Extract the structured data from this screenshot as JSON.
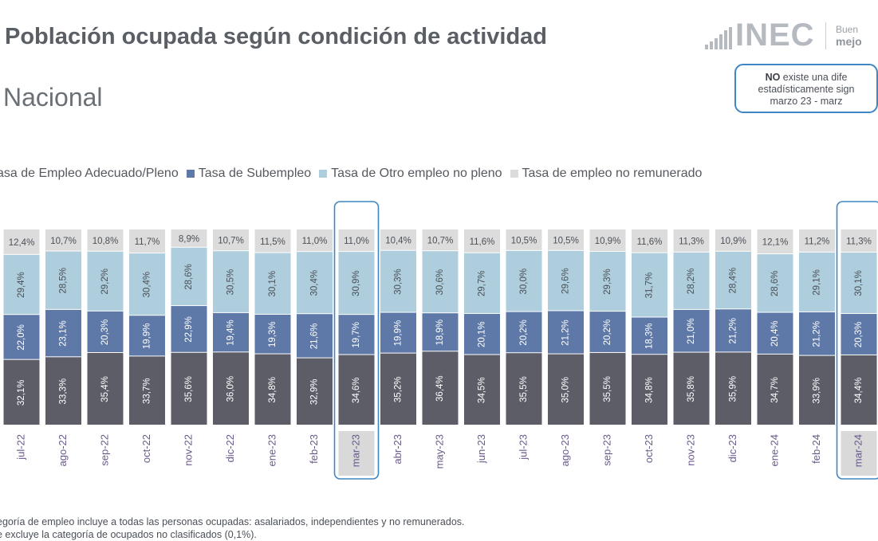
{
  "header": {
    "title": "Población ocupada según condición de actividad",
    "subtitle": "Nacional"
  },
  "logo": {
    "text": "INEC",
    "tagline_1": "Buen",
    "tagline_2": "mejo"
  },
  "note": {
    "bold": "NO",
    "line_1_rest": " existe una dife",
    "line_2": "estadísticamente sign",
    "line_3": "marzo 23 - marz"
  },
  "footnote": {
    "line_1": "egoría de empleo incluye a todas las personas ocupadas: asalariados, independientes y no remunerados.",
    "line_2": "e excluye la categoría de ocupados no clasificados (0,1%)."
  },
  "colors": {
    "adecuado": "#5d5d68",
    "subempleo": "#5e79a8",
    "otro": "#aecddd",
    "no_remunerado": "#dcdcdc",
    "highlight": "#3f86c5",
    "axis_label": "#6a5a8c"
  },
  "chart_data": {
    "type": "bar",
    "stacked": true,
    "percent": true,
    "legend_position": "top-left",
    "categories": [
      "jul-22",
      "ago-22",
      "sep-22",
      "oct-22",
      "nov-22",
      "dic-22",
      "ene-23",
      "feb-23",
      "mar-23",
      "abr-23",
      "may-23",
      "jun-23",
      "jul-23",
      "ago-23",
      "sep-23",
      "oct-23",
      "nov-23",
      "dic-23",
      "ene-24",
      "feb-24",
      "mar-24"
    ],
    "highlighted": [
      "mar-23",
      "mar-24"
    ],
    "series": [
      {
        "name": "asa de Empleo Adecuado/Pleno",
        "key": "adecuado",
        "values": [
          32.1,
          33.3,
          35.4,
          33.7,
          35.6,
          36.0,
          34.8,
          32.9,
          34.6,
          35.2,
          36.4,
          34.5,
          35.5,
          35.0,
          35.5,
          34.8,
          35.8,
          35.9,
          34.7,
          33.9,
          34.4
        ],
        "labels": [
          "32,1%",
          "33,3%",
          "35,4%",
          "33,7%",
          "35,6%",
          "36,0%",
          "34,8%",
          "32,9%",
          "34,6%",
          "35,2%",
          "36,4%",
          "34,5%",
          "35,5%",
          "35,0%",
          "35,5%",
          "34,8%",
          "35,8%",
          "35,9%",
          "34,7%",
          "33,9%",
          "34,4%"
        ]
      },
      {
        "name": "Tasa de Subempleo",
        "key": "subempleo",
        "values": [
          22.0,
          23.1,
          20.3,
          19.9,
          22.9,
          19.4,
          19.3,
          21.6,
          19.7,
          19.9,
          18.9,
          20.1,
          20.2,
          21.2,
          20.2,
          18.3,
          21.0,
          21.2,
          20.4,
          21.2,
          20.3
        ],
        "labels": [
          "22,0%",
          "23,1%",
          "20,3%",
          "19,9%",
          "22,9%",
          "19,4%",
          "19,3%",
          "21,6%",
          "19,7%",
          "19,9%",
          "18,9%",
          "20,1%",
          "20,2%",
          "21,2%",
          "20,2%",
          "18,3%",
          "21,0%",
          "21,2%",
          "20,4%",
          "21,2%",
          "20,3%"
        ]
      },
      {
        "name": "Tasa de Otro empleo no pleno",
        "key": "otro",
        "values": [
          29.4,
          28.5,
          29.2,
          30.4,
          28.6,
          30.5,
          30.1,
          30.4,
          30.9,
          30.3,
          30.6,
          29.7,
          30.0,
          29.6,
          29.3,
          31.7,
          28.2,
          28.4,
          28.6,
          29.1,
          30.1
        ],
        "labels": [
          "29,4%",
          "28,5%",
          "29,2%",
          "30,4%",
          "28,6%",
          "30,5%",
          "30,1%",
          "30,4%",
          "30,9%",
          "30,3%",
          "30,6%",
          "29,7%",
          "30,0%",
          "29,6%",
          "29,3%",
          "31,7%",
          "28,2%",
          "28,4%",
          "28,6%",
          "29,1%",
          "30,1%"
        ]
      },
      {
        "name": "Tasa de empleo no remunerado",
        "key": "no_remunerado",
        "values": [
          12.4,
          10.7,
          10.8,
          11.7,
          8.9,
          10.7,
          11.5,
          11.0,
          11.0,
          10.4,
          10.7,
          11.6,
          10.5,
          10.5,
          10.9,
          11.6,
          11.3,
          10.9,
          12.1,
          11.2,
          11.3
        ],
        "labels": [
          "12,4%",
          "10,7%",
          "10,8%",
          "11,7%",
          "8,9%",
          "10,7%",
          "11,5%",
          "11,0%",
          "11,0%",
          "10,4%",
          "10,7%",
          "11,6%",
          "10,5%",
          "10,5%",
          "10,9%",
          "11,6%",
          "11,3%",
          "10,9%",
          "12,1%",
          "11,2%",
          "11,3%"
        ]
      }
    ]
  }
}
